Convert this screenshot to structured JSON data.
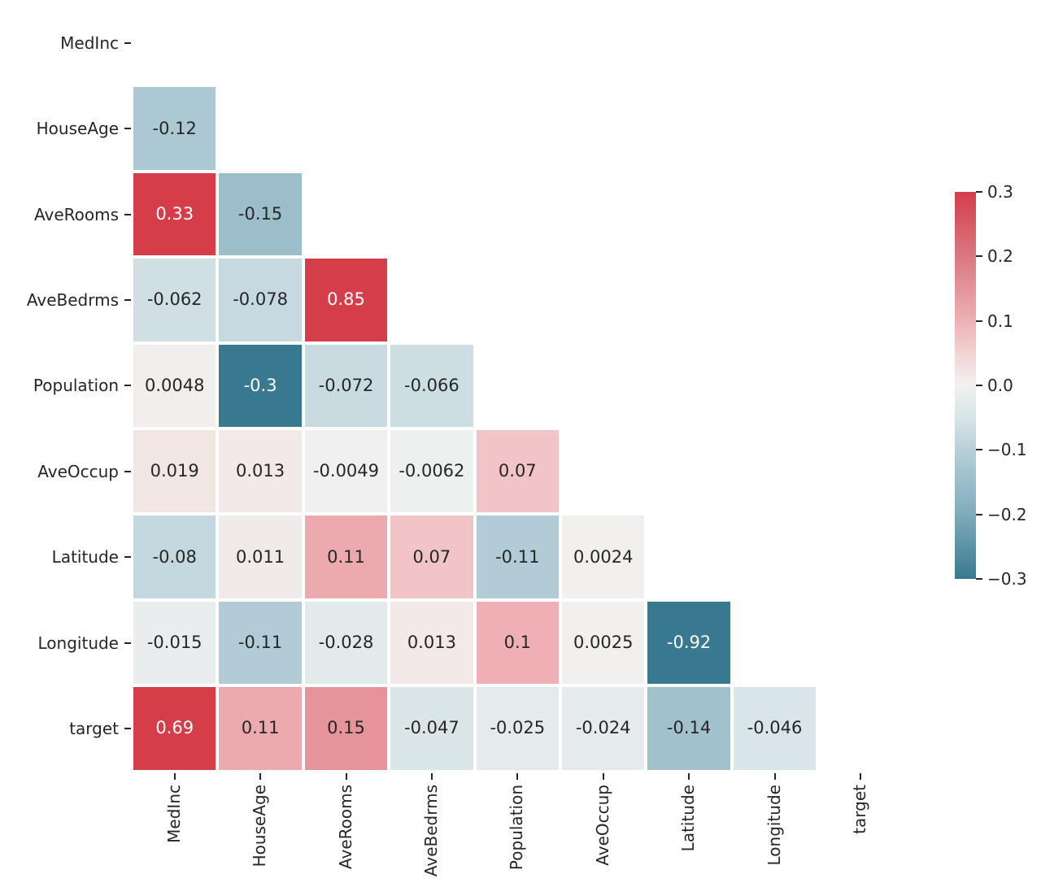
{
  "chart_data": {
    "type": "heatmap",
    "title": "",
    "description": "Lower-triangle correlation heatmap of California housing features and target, annotated with correlation coefficients; diagonal and upper triangle are masked (white).",
    "variables": [
      "MedInc",
      "HouseAge",
      "AveRooms",
      "AveBedrms",
      "Population",
      "AveOccup",
      "Latitude",
      "Longitude",
      "target"
    ],
    "y_tick_labels": [
      "MedInc",
      "HouseAge",
      "AveRooms",
      "AveBedrms",
      "Population",
      "AveOccup",
      "Latitude",
      "Longitude",
      "target"
    ],
    "x_tick_labels": [
      "MedInc",
      "HouseAge",
      "AveRooms",
      "AveBedrms",
      "Population",
      "AveOccup",
      "Latitude",
      "Longitude",
      "target"
    ],
    "matrix_annotations": [
      [
        null,
        null,
        null,
        null,
        null,
        null,
        null,
        null,
        null
      ],
      [
        "-0.12",
        null,
        null,
        null,
        null,
        null,
        null,
        null,
        null
      ],
      [
        "0.33",
        "-0.15",
        null,
        null,
        null,
        null,
        null,
        null,
        null
      ],
      [
        "-0.062",
        "-0.078",
        "0.85",
        null,
        null,
        null,
        null,
        null,
        null
      ],
      [
        "0.0048",
        "-0.3",
        "-0.072",
        "-0.066",
        null,
        null,
        null,
        null,
        null
      ],
      [
        "0.019",
        "0.013",
        "-0.0049",
        "-0.0062",
        "0.07",
        null,
        null,
        null,
        null
      ],
      [
        "-0.08",
        "0.011",
        "0.11",
        "0.07",
        "-0.11",
        "0.0024",
        null,
        null,
        null
      ],
      [
        "-0.015",
        "-0.11",
        "-0.028",
        "0.013",
        "0.1",
        "0.0025",
        "-0.92",
        null,
        null
      ],
      [
        "0.69",
        "0.11",
        "0.15",
        "-0.047",
        "-0.025",
        "-0.024",
        "-0.14",
        "-0.046",
        null
      ]
    ],
    "mask": "diagonal and upper triangle hidden",
    "colorbar": {
      "position": "right",
      "vmin": -0.3,
      "vmax": 0.3,
      "tick_labels": [
        "0.3",
        "0.2",
        "0.1",
        "0.0",
        "−0.1",
        "−0.2",
        "−0.3"
      ],
      "tick_values": [
        0.3,
        0.2,
        0.1,
        0.0,
        -0.1,
        -0.2,
        -0.3
      ]
    },
    "colormap": {
      "name": "diverging teal-white-red",
      "anchors": [
        [
          -0.3,
          "#38798f"
        ],
        [
          -0.2,
          "#7fabbb"
        ],
        [
          -0.1,
          "#b7d0d9"
        ],
        [
          -0.05,
          "#d8e4e8"
        ],
        [
          0.0,
          "#f1f1f0"
        ],
        [
          0.05,
          "#f3d3d3"
        ],
        [
          0.1,
          "#eeb0b4"
        ],
        [
          0.2,
          "#da7880"
        ],
        [
          0.3,
          "#d53d49"
        ]
      ]
    },
    "cell_gap_color": "#ffffff",
    "annotation_colors": {
      "dark": "#262626",
      "light": "#ffffff"
    },
    "tick_color": "#262626",
    "background_color": "#ffffff"
  }
}
